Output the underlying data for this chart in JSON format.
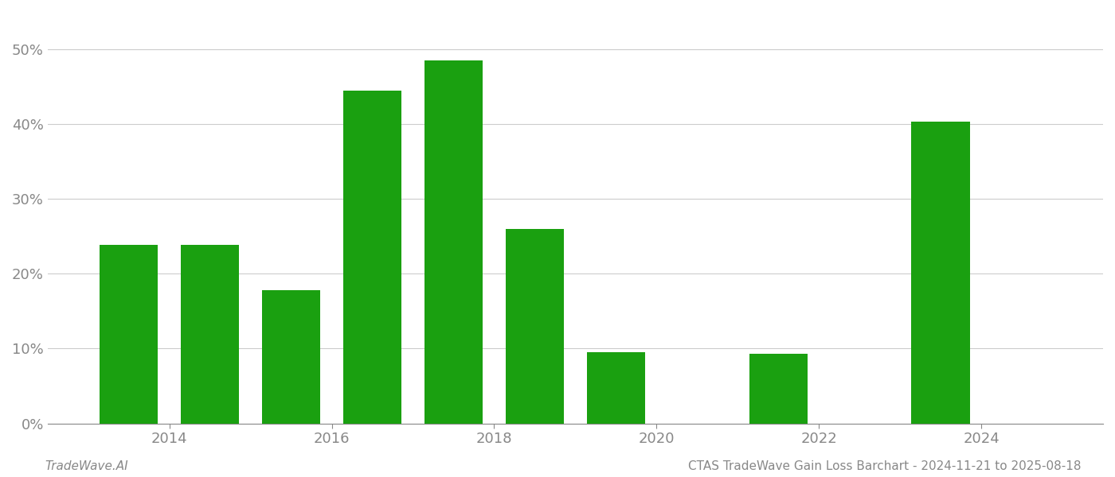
{
  "years": [
    2013.5,
    2014.5,
    2015.5,
    2016.5,
    2017.5,
    2018.5,
    2019.5,
    2020.5,
    2021.5,
    2022.5,
    2023.5,
    2024.5
  ],
  "values": [
    0.239,
    0.239,
    0.178,
    0.445,
    0.485,
    0.26,
    0.095,
    0.0,
    0.093,
    0.0,
    0.403,
    0.0
  ],
  "bar_color": "#1aa010",
  "background_color": "#ffffff",
  "grid_color": "#cccccc",
  "axis_color": "#888888",
  "footer_left": "TradeWave.AI",
  "footer_right": "CTAS TradeWave Gain Loss Barchart - 2024-11-21 to 2025-08-18",
  "ylim": [
    0,
    0.55
  ],
  "yticks": [
    0.0,
    0.1,
    0.2,
    0.3,
    0.4,
    0.5
  ],
  "xticks": [
    2014,
    2016,
    2018,
    2020,
    2022,
    2024
  ],
  "xlim": [
    2012.5,
    2025.5
  ],
  "bar_width": 0.72
}
